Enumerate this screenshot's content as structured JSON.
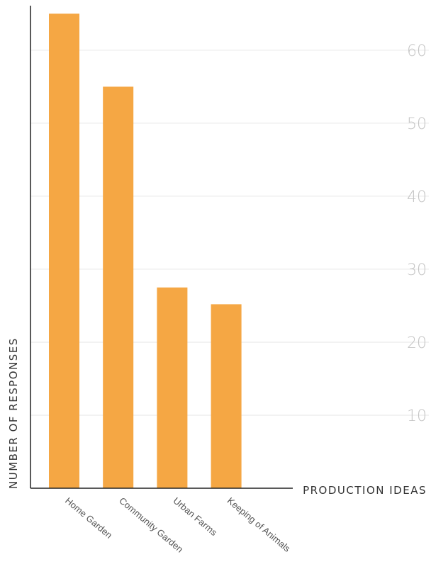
{
  "chart_data": {
    "type": "bar",
    "title": "",
    "xlabel": "PRODUCTION IDEAS",
    "ylabel": "NUMBER OF RESPONSES",
    "categories": [
      "Home Garden",
      "Community Garden",
      "Urban Farms",
      "Keeping of Animals"
    ],
    "values": [
      65,
      55,
      27.5,
      25.2
    ],
    "ylim": [
      0,
      65
    ],
    "yticks": [
      10,
      20,
      30,
      40,
      50,
      60
    ],
    "grid": true,
    "y_axis_position": "right",
    "colors": {
      "bar": "#F5A744",
      "grid": "#e6e6e6",
      "axis": "#222222",
      "tick_label": "#c4c4c4"
    }
  }
}
